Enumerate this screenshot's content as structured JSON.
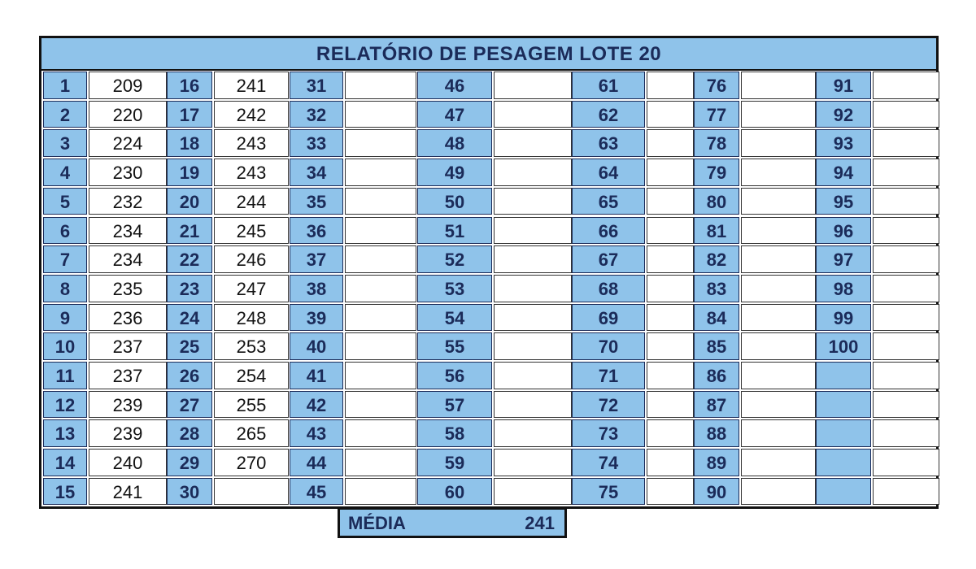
{
  "title": "RELATÓRIO DE PESAGEM LOTE 20",
  "columns": [
    {
      "numbers": [
        "1",
        "2",
        "3",
        "4",
        "5",
        "6",
        "7",
        "8",
        "9",
        "10",
        "11",
        "12",
        "13",
        "14",
        "15"
      ],
      "values": [
        "209",
        "220",
        "224",
        "230",
        "232",
        "234",
        "234",
        "235",
        "236",
        "237",
        "237",
        "239",
        "239",
        "240",
        "241"
      ]
    },
    {
      "numbers": [
        "16",
        "17",
        "18",
        "19",
        "20",
        "21",
        "22",
        "23",
        "24",
        "25",
        "26",
        "27",
        "28",
        "29",
        "30"
      ],
      "values": [
        "241",
        "242",
        "243",
        "243",
        "244",
        "245",
        "246",
        "247",
        "248",
        "253",
        "254",
        "255",
        "265",
        "270",
        ""
      ]
    },
    {
      "numbers": [
        "31",
        "32",
        "33",
        "34",
        "35",
        "36",
        "37",
        "38",
        "39",
        "40",
        "41",
        "42",
        "43",
        "44",
        "45"
      ],
      "values": [
        "",
        "",
        "",
        "",
        "",
        "",
        "",
        "",
        "",
        "",
        "",
        "",
        "",
        "",
        ""
      ]
    },
    {
      "numbers": [
        "46",
        "47",
        "48",
        "49",
        "50",
        "51",
        "52",
        "53",
        "54",
        "55",
        "56",
        "57",
        "58",
        "59",
        "60"
      ],
      "values": [
        "",
        "",
        "",
        "",
        "",
        "",
        "",
        "",
        "",
        "",
        "",
        "",
        "",
        "",
        ""
      ]
    },
    {
      "numbers": [
        "61",
        "62",
        "63",
        "64",
        "65",
        "66",
        "67",
        "68",
        "69",
        "70",
        "71",
        "72",
        "73",
        "74",
        "75"
      ],
      "values": [
        "",
        "",
        "",
        "",
        "",
        "",
        "",
        "",
        "",
        "",
        "",
        "",
        "",
        "",
        ""
      ]
    },
    {
      "numbers": [
        "76",
        "77",
        "78",
        "79",
        "80",
        "81",
        "82",
        "83",
        "84",
        "85",
        "86",
        "87",
        "88",
        "89",
        "90"
      ],
      "values": [
        "",
        "",
        "",
        "",
        "",
        "",
        "",
        "",
        "",
        "",
        "",
        "",
        "",
        "",
        ""
      ]
    },
    {
      "numbers": [
        "91",
        "92",
        "93",
        "94",
        "95",
        "96",
        "97",
        "98",
        "99",
        "100",
        "",
        "",
        "",
        "",
        ""
      ],
      "values": [
        "",
        "",
        "",
        "",
        "",
        "",
        "",
        "",
        "",
        "",
        "",
        "",
        "",
        "",
        ""
      ]
    }
  ],
  "summary": {
    "label": "MÉDIA",
    "value": "241"
  },
  "colors": {
    "header_fill": "#8fc3ea",
    "text_dark": "#1b2b59",
    "border": "#111111"
  }
}
